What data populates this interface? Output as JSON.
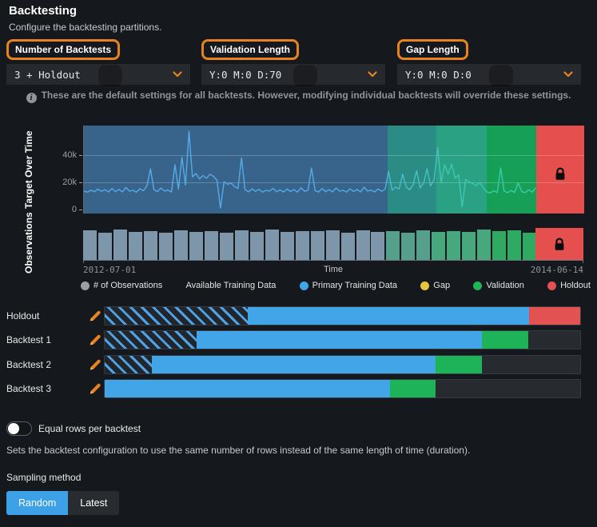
{
  "header": {
    "title": "Backtesting",
    "subtitle": "Configure the backtesting partitions."
  },
  "controls": [
    {
      "label": "Number of Backtests",
      "value": "3 + Holdout"
    },
    {
      "label": "Validation Length",
      "value": "Y:0 M:0 D:70"
    },
    {
      "label": "Gap Length",
      "value": "Y:0 M:0 D:0"
    }
  ],
  "info_note": "These are the default settings for all backtests. However, modifying individual backtests will override these settings.",
  "chart_data": {
    "type": "line",
    "title": "Target Over Time",
    "ylabel": "Target Over Time",
    "yticks": [
      {
        "label": "40k",
        "value": 40000
      },
      {
        "label": "20k",
        "value": 20000
      },
      {
        "label": "0",
        "value": 0
      }
    ],
    "ylim": [
      0,
      60000
    ],
    "x_axis": {
      "label": "Time",
      "start": "2012-07-01",
      "end": "2014-06-14"
    },
    "regions": [
      {
        "name": "primary-training",
        "end": 0.607,
        "band": "#38648C",
        "bar": "#7E96A9"
      },
      {
        "name": "validation-overlap-1",
        "end": 0.705,
        "band": "#2B8B85",
        "bar": "#54A08C"
      },
      {
        "name": "validation-overlap-2",
        "end": 0.805,
        "band": "#2AA183",
        "bar": "#47A77D"
      },
      {
        "name": "validation",
        "end": 0.904,
        "band": "#16A057",
        "bar": "#2FAA62"
      },
      {
        "name": "holdout",
        "end": 1.0,
        "band": "#E5504E",
        "bar": "#E5504E"
      }
    ],
    "line_color_start": "#55A9E8",
    "line_color_end": "#37CBA9",
    "line_x_end_fraction": 0.903,
    "line_values_k": [
      13.5,
      12.8,
      14.2,
      13.1,
      15.0,
      13.4,
      14.6,
      12.9,
      15.5,
      13.2,
      14.8,
      13.0,
      16.2,
      13.5,
      14.1,
      12.7,
      15.3,
      13.8,
      17.5,
      30.0,
      14.5,
      13.2,
      15.8,
      13.6,
      14.3,
      12.9,
      33.0,
      15.0,
      38.5,
      18.0,
      57.5,
      24.0,
      26.5,
      22.5,
      25.0,
      23.0,
      26.0,
      24.5,
      21.5,
      1.0,
      20.5,
      18.5,
      19.5,
      17.0,
      15.5,
      38.0,
      14.5,
      13.0,
      15.2,
      13.4,
      14.8,
      12.8,
      14.2,
      13.6,
      15.6,
      13.1,
      14.4,
      12.9,
      15.0,
      13.3,
      14.6,
      12.8,
      16.0,
      13.4,
      14.2,
      30.5,
      14.0,
      12.9,
      15.4,
      13.2,
      14.6,
      13.0,
      15.8,
      13.5,
      14.1,
      12.8,
      15.2,
      13.3,
      14.7,
      12.9,
      16.4,
      13.6,
      14.3,
      13.0,
      15.1,
      13.4,
      14.9,
      28.0,
      14.2,
      16.5,
      15.0,
      26.0,
      16.8,
      14.5,
      18.2,
      28.5,
      16.0,
      19.5,
      30.0,
      17.5,
      22.0,
      45.5,
      20.0,
      33.0,
      26.0,
      33.5,
      23.0,
      25.5,
      2.0,
      22.0,
      20.5,
      19.0,
      17.5,
      20.0,
      16.0,
      13.0,
      12.2,
      13.8,
      12.5,
      30.5,
      13.5,
      12.4,
      14.0,
      12.6,
      19.5,
      13.2,
      12.5,
      14.5,
      12.8,
      16.0
    ],
    "observations": {
      "ylabel": "Observations",
      "bar_heights": [
        0.97,
        0.9,
        0.99,
        0.93,
        0.96,
        0.89,
        0.98,
        0.92,
        0.95,
        0.9,
        0.97,
        0.93,
        0.99,
        0.91,
        0.96,
        0.94,
        0.98,
        0.9,
        0.97,
        0.92,
        0.95,
        0.89,
        0.98,
        0.93,
        0.96,
        0.91,
        0.99,
        0.94,
        0.97,
        0.9,
        0.96,
        0.92,
        0.98
      ]
    }
  },
  "legend": {
    "items": [
      {
        "label": "# of Observations",
        "color": "#9AA0A6"
      },
      {
        "label": "Available Training Data",
        "color": null
      },
      {
        "label": "Primary Training Data",
        "color": "#42A5E8"
      },
      {
        "label": "Gap",
        "color": "#E9C53D"
      },
      {
        "label": "Validation",
        "color": "#21B358"
      },
      {
        "label": "Holdout",
        "color": "#E25252"
      }
    ]
  },
  "backtests": {
    "rows": [
      {
        "name": "Holdout",
        "segments": [
          {
            "type": "available",
            "width": 0.3
          },
          {
            "type": "primary",
            "width": 0.592
          },
          {
            "type": "holdout",
            "width": 0.108
          }
        ]
      },
      {
        "name": "Backtest 1",
        "segments": [
          {
            "type": "available",
            "width": 0.193
          },
          {
            "type": "primary",
            "width": 0.6
          },
          {
            "type": "validation",
            "width": 0.098
          }
        ]
      },
      {
        "name": "Backtest 2",
        "segments": [
          {
            "type": "available",
            "width": 0.099
          },
          {
            "type": "primary",
            "width": 0.596
          },
          {
            "type": "validation",
            "width": 0.098
          }
        ]
      },
      {
        "name": "Backtest 3",
        "segments": [
          {
            "type": "primary",
            "width": 0.6
          },
          {
            "type": "validation",
            "width": 0.096
          }
        ]
      }
    ]
  },
  "equal_rows": {
    "label": "Equal rows per backtest",
    "enabled": false,
    "description": "Sets the backtest configuration to use the same number of rows instead of the same length of time (duration)."
  },
  "sampling": {
    "label": "Sampling method",
    "options": [
      "Random",
      "Latest"
    ],
    "selected": "Random"
  },
  "colors": {
    "accent_orange": "#E8821E",
    "primary_blue": "#42A5E8",
    "validation_green": "#1DB358",
    "holdout_red": "#E25252",
    "lock": "#0B0D0F"
  }
}
